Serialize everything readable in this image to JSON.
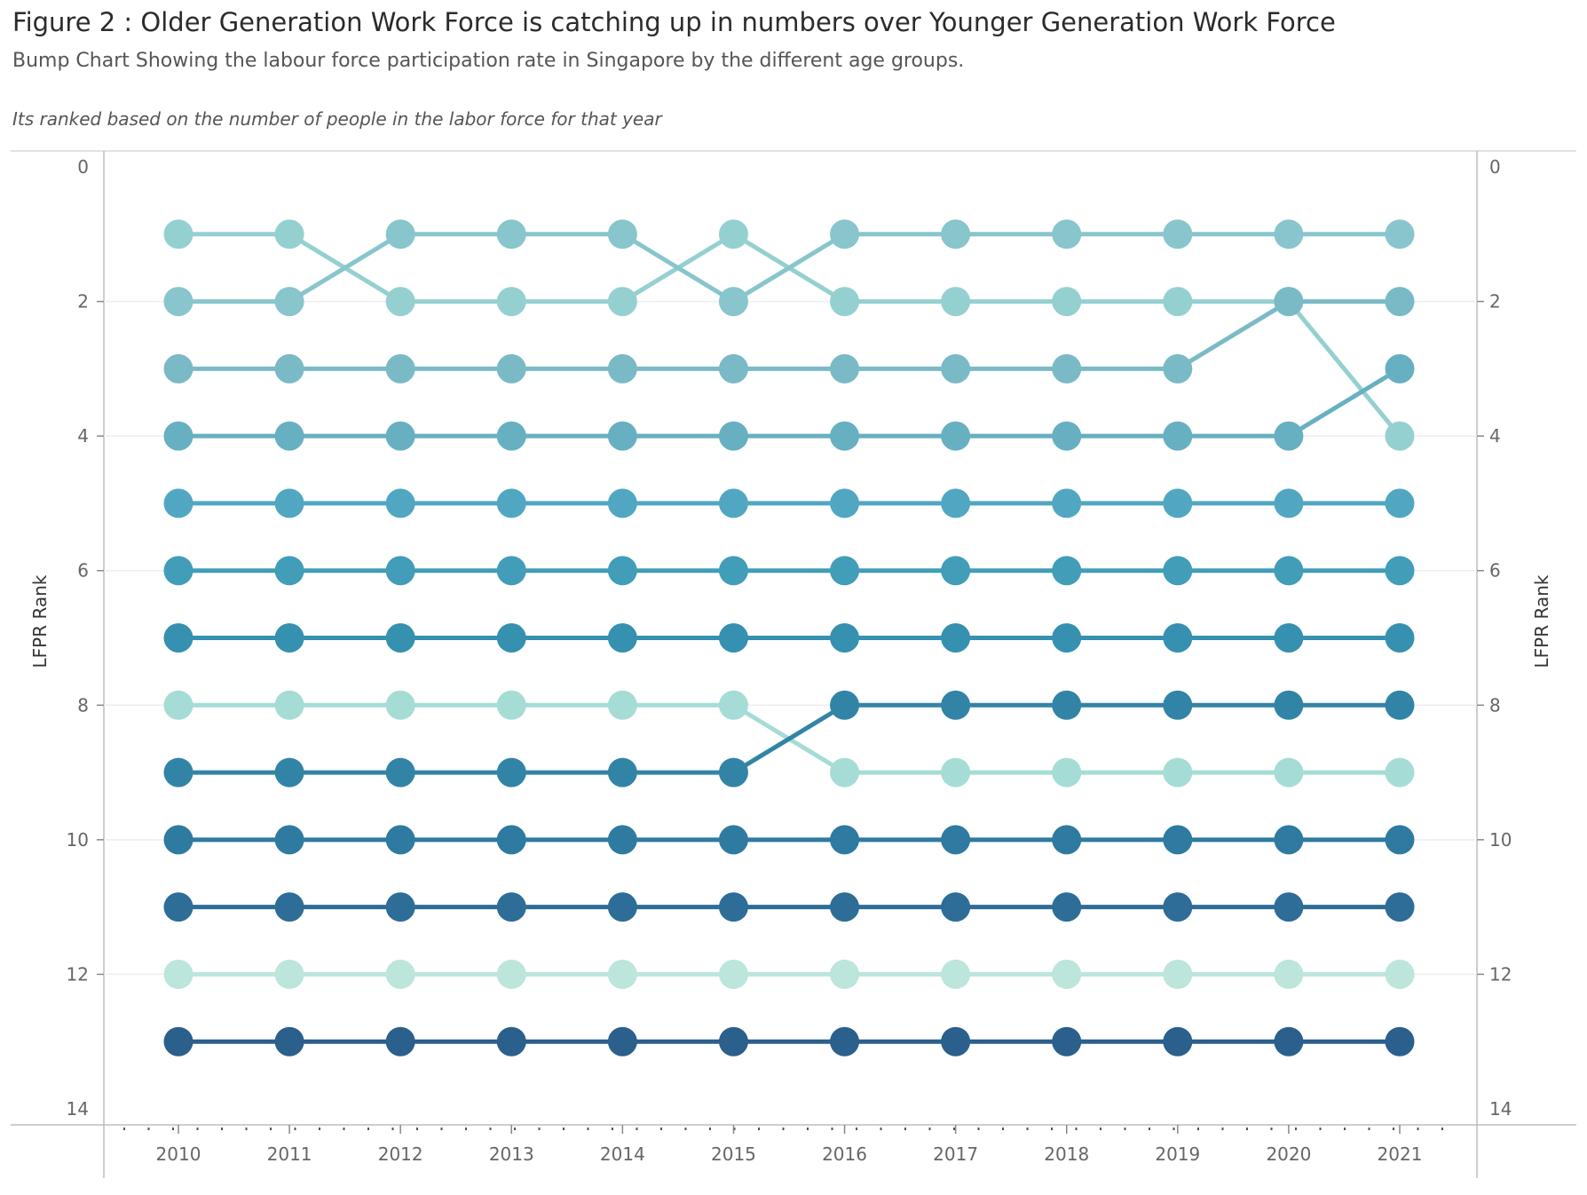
{
  "header": {
    "title": "Figure 2 : Older Generation Work Force is catching up in numbers over  Younger Generation Work Force",
    "subtitle": "Bump Chart Showing the labour force participation rate in Singapore by the different age groups.",
    "note": "Its ranked based on the number of people in the labor force for that year"
  },
  "chart_data": {
    "type": "line",
    "chart_style": "bump chart with circle markers",
    "x": [
      "2010",
      "2011",
      "2012",
      "2013",
      "2014",
      "2015",
      "2016",
      "2017",
      "2018",
      "2019",
      "2020",
      "2021"
    ],
    "ylabel": "LFPR Rank",
    "ylabel_right": "LFPR Rank",
    "ylim": [
      0,
      14
    ],
    "y_reversed": true,
    "y_ticks": [
      "0",
      "2",
      "4",
      "6",
      "8",
      "10",
      "12",
      "14"
    ],
    "grid": "horizontal gridlines at even ranks",
    "legend": "none",
    "series": [
      {
        "values": [
          1,
          1,
          2,
          2,
          2,
          1,
          2,
          2,
          2,
          2,
          2,
          4
        ],
        "color": "#95d0d1"
      },
      {
        "values": [
          2,
          2,
          1,
          1,
          1,
          2,
          1,
          1,
          1,
          1,
          1,
          1
        ],
        "color": "#88c5cc"
      },
      {
        "values": [
          3,
          3,
          3,
          3,
          3,
          3,
          3,
          3,
          3,
          3,
          2,
          2
        ],
        "color": "#7abac6"
      },
      {
        "values": [
          4,
          4,
          4,
          4,
          4,
          4,
          4,
          4,
          4,
          4,
          4,
          3
        ],
        "color": "#67b0c1"
      },
      {
        "values": [
          5,
          5,
          5,
          5,
          5,
          5,
          5,
          5,
          5,
          5,
          5,
          5
        ],
        "color": "#51a7c1"
      },
      {
        "values": [
          6,
          6,
          6,
          6,
          6,
          6,
          6,
          6,
          6,
          6,
          6,
          6
        ],
        "color": "#419db8"
      },
      {
        "values": [
          7,
          7,
          7,
          7,
          7,
          7,
          7,
          7,
          7,
          7,
          7,
          7
        ],
        "color": "#3690b0"
      },
      {
        "values": [
          8,
          8,
          8,
          8,
          8,
          8,
          9,
          9,
          9,
          9,
          9,
          9
        ],
        "color": "#a6dcd6"
      },
      {
        "values": [
          9,
          9,
          9,
          9,
          9,
          9,
          8,
          8,
          8,
          8,
          8,
          8
        ],
        "color": "#3284a6"
      },
      {
        "values": [
          10,
          10,
          10,
          10,
          10,
          10,
          10,
          10,
          10,
          10,
          10,
          10
        ],
        "color": "#2f7aa0"
      },
      {
        "values": [
          11,
          11,
          11,
          11,
          11,
          11,
          11,
          11,
          11,
          11,
          11,
          11
        ],
        "color": "#2d6d97"
      },
      {
        "values": [
          12,
          12,
          12,
          12,
          12,
          12,
          12,
          12,
          12,
          12,
          12,
          12
        ],
        "color": "#bce5dc"
      },
      {
        "values": [
          13,
          13,
          13,
          13,
          13,
          13,
          13,
          13,
          13,
          13,
          13,
          13
        ],
        "color": "#2b5f8c"
      }
    ]
  }
}
